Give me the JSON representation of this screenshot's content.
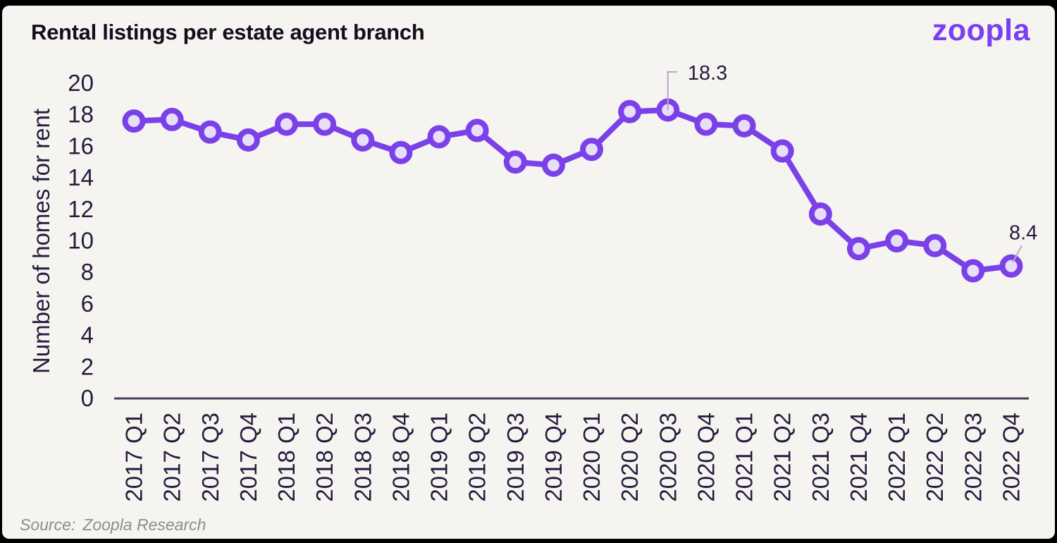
{
  "frame": {
    "border_color": "#000000",
    "card_background": "#f6f4f1"
  },
  "header": {
    "title": "Rental listings per estate agent branch",
    "logo_text": "zoopla",
    "logo_color": "#7a3ff2"
  },
  "chart_data": {
    "type": "line",
    "title": "Rental listings per estate agent branch",
    "xlabel": "",
    "ylabel": "Number of homes for rent",
    "ylim": [
      0,
      20
    ],
    "ytick_step": 2,
    "grid": false,
    "legend_position": "none",
    "categories": [
      "2017 Q1",
      "2017 Q2",
      "2017 Q3",
      "2017 Q4",
      "2018 Q1",
      "2018 Q2",
      "2018 Q3",
      "2018 Q4",
      "2019 Q1",
      "2019 Q2",
      "2019 Q3",
      "2019 Q4",
      "2020 Q1",
      "2020 Q2",
      "2020 Q3",
      "2020 Q4",
      "2021 Q1",
      "2021 Q2",
      "2021 Q3",
      "2021 Q4",
      "2022 Q1",
      "2022 Q2",
      "2022 Q3",
      "2022 Q4"
    ],
    "series": [
      {
        "name": "Rental listings per estate agent branch",
        "values": [
          17.6,
          17.7,
          16.9,
          16.4,
          17.4,
          17.4,
          16.4,
          15.6,
          16.6,
          17.0,
          15.0,
          14.8,
          15.8,
          18.2,
          18.3,
          17.4,
          17.3,
          15.7,
          11.7,
          9.5,
          10.0,
          9.7,
          8.1,
          8.4
        ]
      }
    ],
    "annotations": [
      {
        "category": "2020 Q3",
        "index": 14,
        "label": "18.3",
        "callout": "up"
      },
      {
        "category": "2022 Q4",
        "index": 23,
        "label": "8.4",
        "callout": "diag"
      }
    ],
    "colors": {
      "line": "#7b41e9",
      "marker_fill": "#e8def9",
      "axis_line": "#463c5a",
      "tick_text": "#241c3c",
      "callout_line": "#b3aac7",
      "annotation_text": "#171125"
    }
  },
  "footer": {
    "source_label": "Source:",
    "source_value": "Zoopla Research"
  }
}
